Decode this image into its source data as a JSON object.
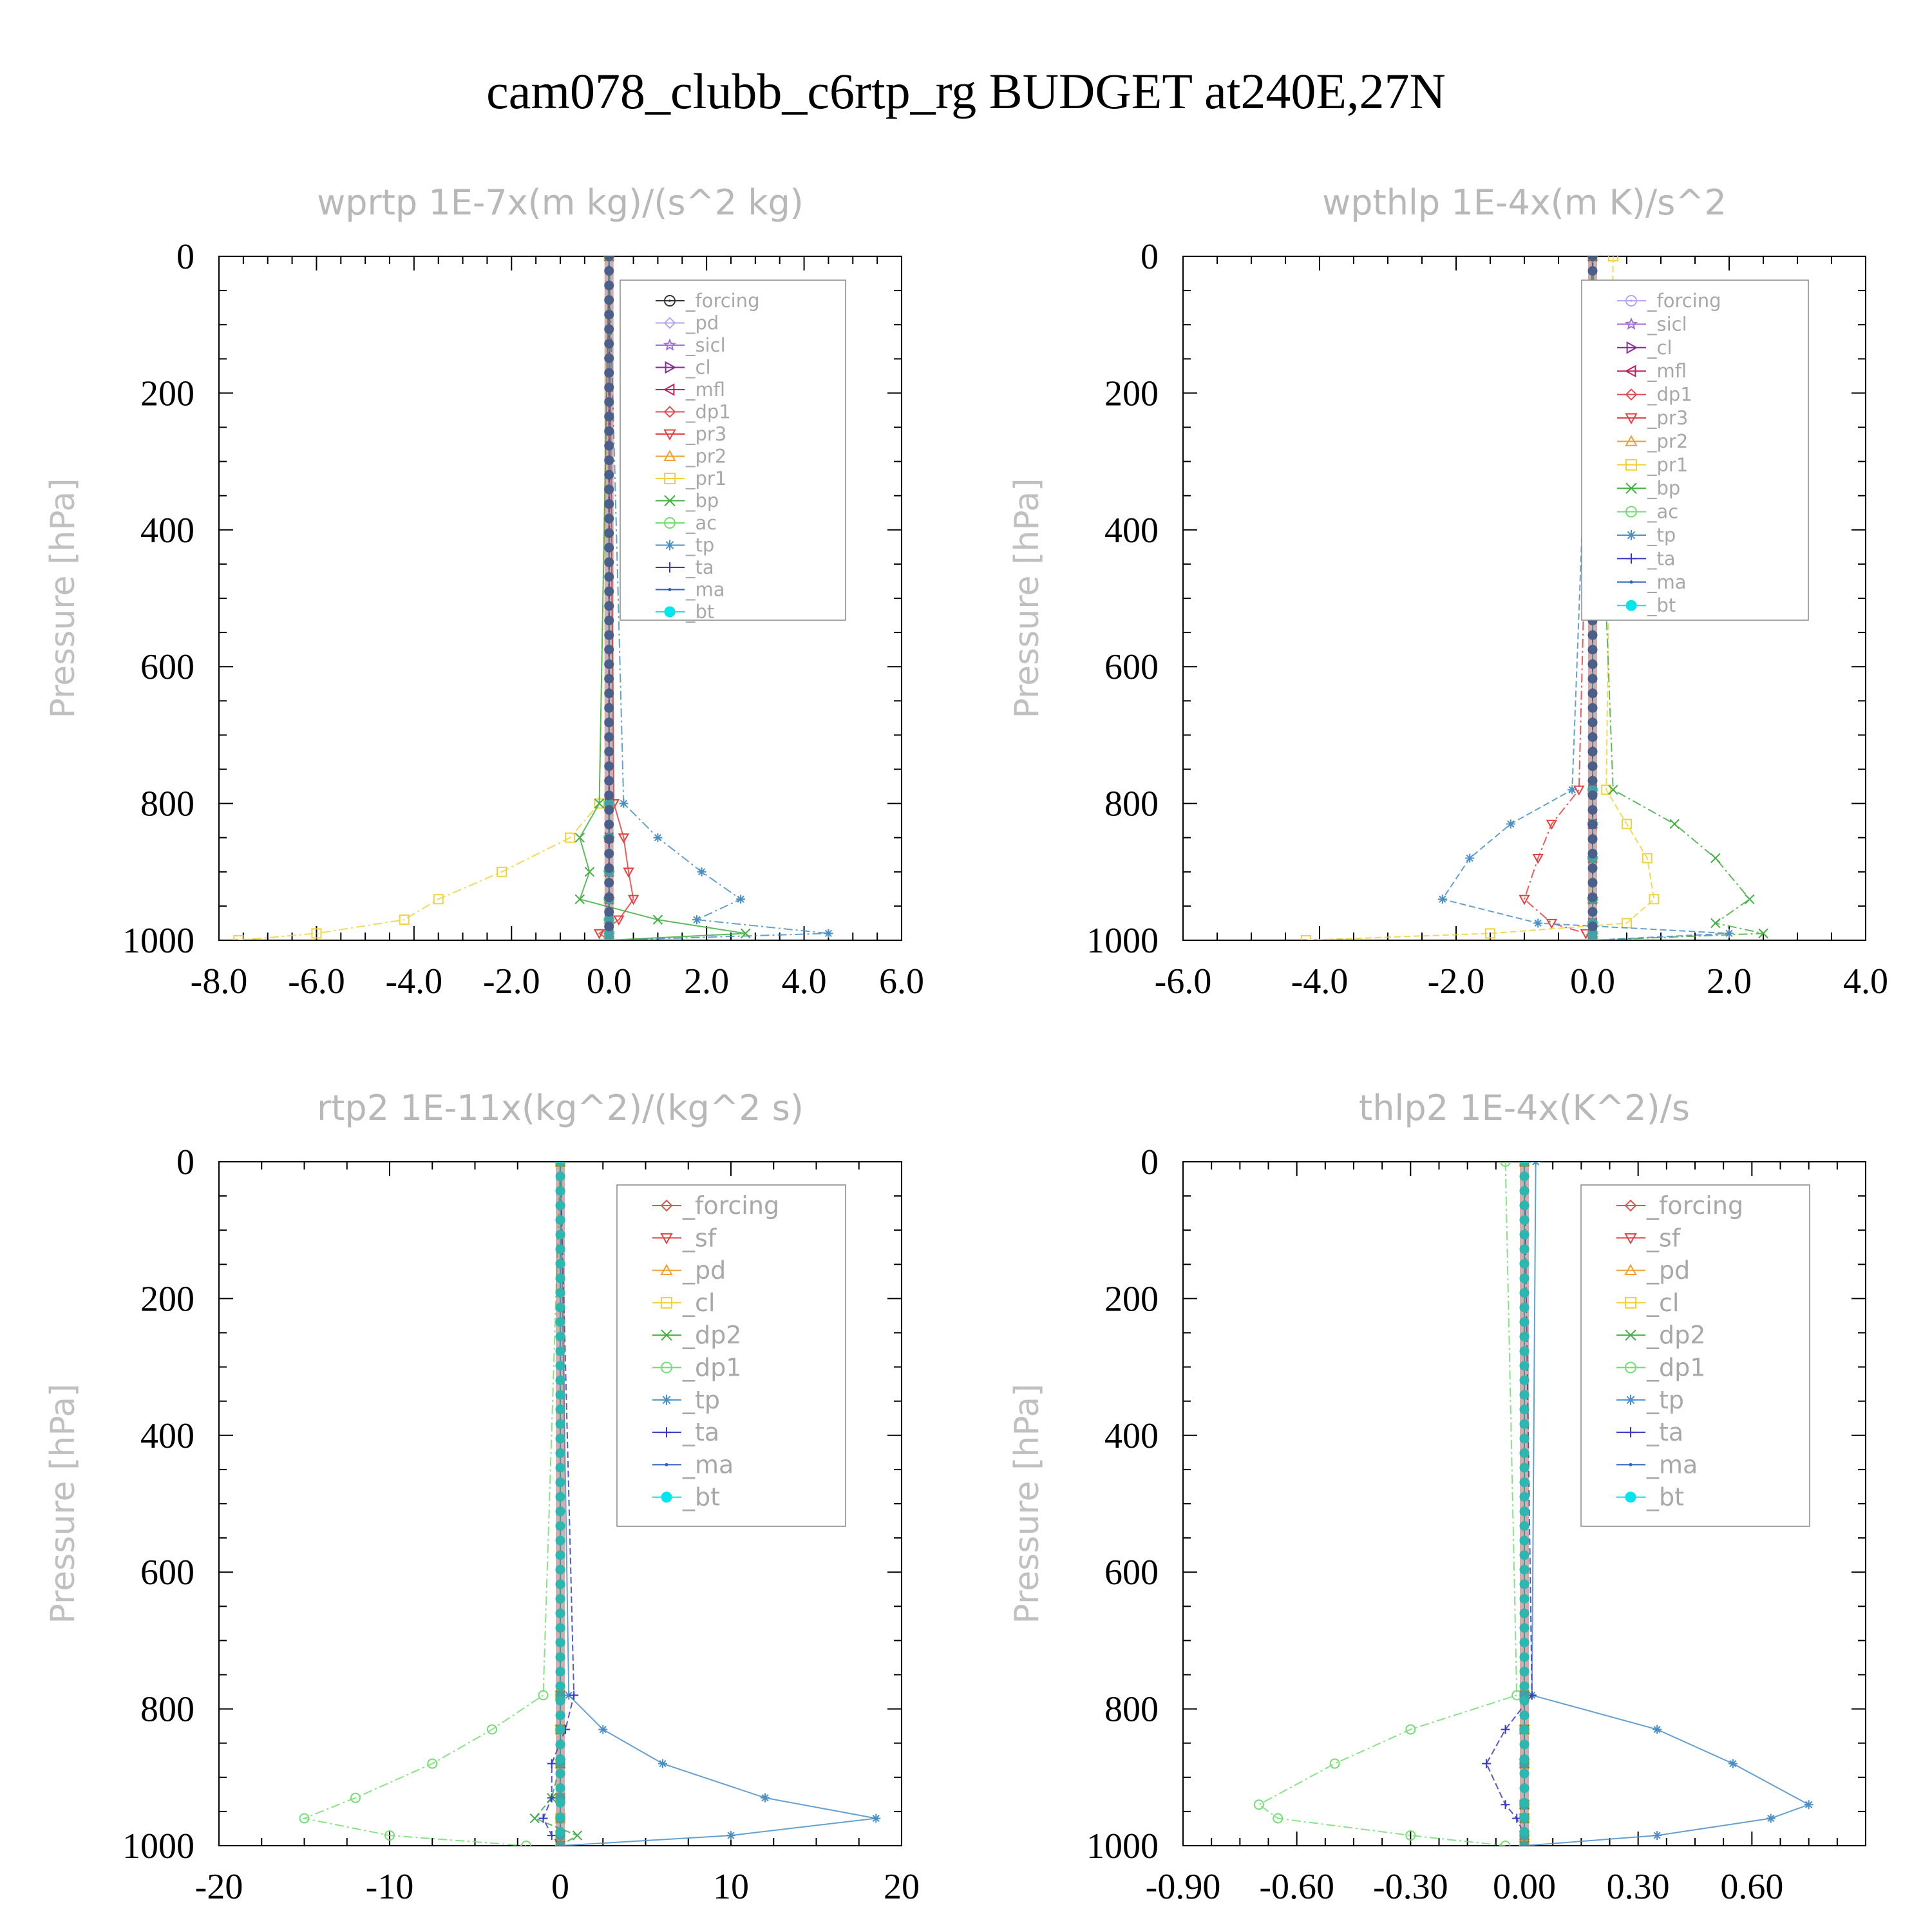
{
  "figure_title": "cam078_clubb_c6rtp_rg  BUDGET at240E,27N",
  "chart_data": [
    {
      "type": "line",
      "title": "wprtp  1E-7x(m kg)/(s^2 kg)",
      "ylabel": "Pressure [hPa]",
      "xlabel": "",
      "xlim": [
        -8.0,
        6.0
      ],
      "xticks": [
        "-8.0",
        "-6.0",
        "-4.0",
        "-2.0",
        "0.0",
        "2.0",
        "4.0",
        "6.0"
      ],
      "ylim": [
        1000,
        0
      ],
      "yticks": [
        "0",
        "200",
        "400",
        "600",
        "800",
        "1000"
      ],
      "legend_position": "top-right",
      "pressure_levels": [
        0,
        800,
        850,
        900,
        940,
        970,
        990,
        1000
      ],
      "series": [
        {
          "name": "_forcing",
          "color": "#333333",
          "marker": "circle-dot",
          "values": [
            0,
            0,
            0,
            0,
            0,
            0,
            0,
            0
          ]
        },
        {
          "name": "_pd",
          "color": "#b9a6f0",
          "marker": "diamond",
          "values": [
            0,
            0,
            0,
            0,
            0,
            0,
            0,
            0
          ]
        },
        {
          "name": "_sicl",
          "color": "#a070d8",
          "marker": "star",
          "values": [
            0,
            0,
            0,
            0,
            0,
            0,
            0,
            0
          ]
        },
        {
          "name": "_cl",
          "color": "#8a2a9a",
          "marker": "tri-right",
          "values": [
            0,
            0,
            0,
            0,
            0,
            0,
            0,
            0
          ]
        },
        {
          "name": "_mfl",
          "color": "#c0205a",
          "marker": "tri-left",
          "values": [
            0,
            0,
            0,
            0,
            0,
            0,
            0,
            0
          ]
        },
        {
          "name": "_dp1",
          "color": "#e05050",
          "marker": "diamond",
          "values": [
            0,
            0,
            0,
            0,
            0,
            0,
            0,
            0
          ]
        },
        {
          "name": "_pr3",
          "color": "#e84040",
          "marker": "tri-down",
          "values": [
            0,
            0.1,
            0.3,
            0.4,
            0.5,
            0.2,
            -0.2,
            0
          ]
        },
        {
          "name": "_pr2",
          "color": "#f0a030",
          "marker": "tri-up",
          "values": [
            0,
            0,
            0,
            0,
            0,
            0,
            0,
            0
          ]
        },
        {
          "name": "_pr1",
          "color": "#f2d23a",
          "marker": "square",
          "values": [
            0,
            -0.2,
            -0.8,
            -2.2,
            -3.5,
            -4.2,
            -6.0,
            -7.6
          ]
        },
        {
          "name": "_bp",
          "color": "#40b040",
          "marker": "x",
          "values": [
            0,
            -0.2,
            -0.6,
            -0.4,
            -0.6,
            1.0,
            2.8,
            0
          ]
        },
        {
          "name": "_ac",
          "color": "#70e070",
          "marker": "circle",
          "values": [
            0,
            0,
            0,
            0,
            0,
            0,
            0,
            0
          ]
        },
        {
          "name": "_tp",
          "color": "#4a90c8",
          "marker": "asterisk",
          "values": [
            0,
            0.3,
            1.0,
            1.9,
            2.7,
            1.8,
            4.5,
            0
          ]
        },
        {
          "name": "_ta",
          "color": "#3838c8",
          "marker": "plus",
          "values": [
            0,
            0,
            0,
            0,
            0,
            0,
            0,
            0
          ]
        },
        {
          "name": "_ma",
          "color": "#3060c0",
          "marker": "dot",
          "values": [
            0,
            0,
            0,
            0,
            0,
            0,
            0,
            0
          ]
        },
        {
          "name": "_bt",
          "color": "#00e5ee",
          "marker": "filled-circle",
          "values": [
            0,
            0,
            0,
            0,
            0,
            0,
            0,
            0
          ]
        }
      ]
    },
    {
      "type": "line",
      "title": "wpthlp  1E-4x(m K)/s^2",
      "ylabel": "Pressure [hPa]",
      "xlabel": "",
      "xlim": [
        -6.0,
        4.0
      ],
      "xticks": [
        "-6.0",
        "-4.0",
        "-2.0",
        "0.0",
        "2.0",
        "4.0"
      ],
      "ylim": [
        1000,
        0
      ],
      "yticks": [
        "0",
        "200",
        "400",
        "600",
        "800",
        "1000"
      ],
      "legend_position": "top-right",
      "pressure_levels": [
        0,
        780,
        830,
        880,
        940,
        975,
        990,
        1000
      ],
      "series": [
        {
          "name": "_forcing",
          "color": "#b9a6f0",
          "marker": "circle-dot",
          "values": [
            0,
            0,
            0,
            0,
            0,
            0,
            0,
            0
          ]
        },
        {
          "name": "_sicl",
          "color": "#a070d8",
          "marker": "star",
          "values": [
            0,
            0,
            0,
            0,
            0,
            0,
            0,
            0
          ]
        },
        {
          "name": "_cl",
          "color": "#8a2a9a",
          "marker": "tri-right",
          "values": [
            0,
            0,
            0,
            0,
            0,
            0,
            0,
            0
          ]
        },
        {
          "name": "_mfl",
          "color": "#c0205a",
          "marker": "tri-left",
          "values": [
            0,
            0,
            0,
            0,
            0,
            0,
            0,
            0
          ]
        },
        {
          "name": "_dp1",
          "color": "#e05050",
          "marker": "diamond",
          "values": [
            0,
            0,
            0,
            0,
            0,
            0,
            0,
            0
          ]
        },
        {
          "name": "_pr3",
          "color": "#e84040",
          "marker": "tri-down",
          "values": [
            0,
            -0.2,
            -0.6,
            -0.8,
            -1.0,
            -0.6,
            -0.1,
            0
          ]
        },
        {
          "name": "_pr2",
          "color": "#f0a030",
          "marker": "tri-up",
          "values": [
            0,
            0,
            0,
            0,
            0,
            0,
            0,
            0
          ]
        },
        {
          "name": "_pr1",
          "color": "#f2d23a",
          "marker": "square",
          "values": [
            0.3,
            0.2,
            0.5,
            0.8,
            0.9,
            0.5,
            -1.5,
            -4.2
          ]
        },
        {
          "name": "_bp",
          "color": "#40b040",
          "marker": "x",
          "values": [
            0,
            0.3,
            1.2,
            1.8,
            2.3,
            1.8,
            2.5,
            0
          ]
        },
        {
          "name": "_ac",
          "color": "#70e070",
          "marker": "circle",
          "values": [
            0,
            0,
            0,
            0,
            0,
            0,
            0,
            0
          ]
        },
        {
          "name": "_tp",
          "color": "#4a90c8",
          "marker": "asterisk",
          "values": [
            0,
            -0.3,
            -1.2,
            -1.8,
            -2.2,
            -0.8,
            2.0,
            0
          ]
        },
        {
          "name": "_ta",
          "color": "#3838c8",
          "marker": "plus",
          "values": [
            0,
            0,
            0,
            0,
            0,
            0,
            0,
            0
          ]
        },
        {
          "name": "_ma",
          "color": "#3060c0",
          "marker": "dot",
          "values": [
            0,
            0,
            0,
            0,
            0,
            0,
            0,
            0
          ]
        },
        {
          "name": "_bt",
          "color": "#00e5ee",
          "marker": "filled-circle",
          "values": [
            0,
            0,
            0,
            0,
            0,
            0,
            0,
            0
          ]
        }
      ]
    },
    {
      "type": "line",
      "title": "rtp2  1E-11x(kg^2)/(kg^2 s)",
      "ylabel": "Pressure [hPa]",
      "xlabel": "",
      "xlim": [
        -20,
        20
      ],
      "xticks": [
        "-20",
        "-10",
        "0",
        "10",
        "20"
      ],
      "ylim": [
        1000,
        0
      ],
      "yticks": [
        "0",
        "200",
        "400",
        "600",
        "800",
        "1000"
      ],
      "legend_position": "top-right",
      "pressure_levels": [
        0,
        780,
        830,
        880,
        930,
        960,
        985,
        1000
      ],
      "series": [
        {
          "name": "_forcing",
          "color": "#e05050",
          "marker": "diamond",
          "values": [
            0,
            0,
            0,
            0,
            0,
            0,
            0,
            0
          ]
        },
        {
          "name": "_sf",
          "color": "#e84040",
          "marker": "tri-down",
          "values": [
            0,
            0,
            0,
            0,
            0,
            0,
            0,
            0
          ]
        },
        {
          "name": "_pd",
          "color": "#f0a030",
          "marker": "tri-up",
          "values": [
            0,
            0,
            0,
            0,
            0,
            0,
            0,
            0
          ]
        },
        {
          "name": "_cl",
          "color": "#f2d23a",
          "marker": "square",
          "values": [
            0,
            0,
            0,
            0,
            0,
            0,
            0,
            0
          ]
        },
        {
          "name": "_dp2",
          "color": "#40b040",
          "marker": "x",
          "values": [
            0,
            0,
            0,
            0,
            -0.5,
            -1.5,
            1.0,
            0
          ]
        },
        {
          "name": "_dp1",
          "color": "#70e070",
          "marker": "circle",
          "values": [
            0,
            -1.0,
            -4.0,
            -7.5,
            -12.0,
            -15.0,
            -10.0,
            -2.0
          ]
        },
        {
          "name": "_tp",
          "color": "#4a90c8",
          "marker": "asterisk",
          "values": [
            0,
            0.5,
            2.5,
            6.0,
            12.0,
            18.5,
            10.0,
            0
          ]
        },
        {
          "name": "_ta",
          "color": "#3838c8",
          "marker": "plus",
          "values": [
            0,
            0.8,
            0.3,
            -0.5,
            -0.5,
            -1.0,
            -0.5,
            0
          ]
        },
        {
          "name": "_ma",
          "color": "#3060c0",
          "marker": "dot",
          "values": [
            0,
            0,
            0,
            0,
            0,
            0,
            0,
            0
          ]
        },
        {
          "name": "_bt",
          "color": "#00e5ee",
          "marker": "filled-circle",
          "values": [
            0,
            0,
            0,
            0,
            0,
            0,
            0,
            0
          ]
        }
      ]
    },
    {
      "type": "line",
      "title": "thlp2  1E-4x(K^2)/s",
      "ylabel": "Pressure [hPa]",
      "xlabel": "",
      "xlim": [
        -0.9,
        0.9
      ],
      "xticks": [
        "-0.90",
        "-0.60",
        "-0.30",
        "0.00",
        "0.30",
        "0.60"
      ],
      "ylim": [
        1000,
        0
      ],
      "yticks": [
        "0",
        "200",
        "400",
        "600",
        "800",
        "1000"
      ],
      "legend_position": "top-right",
      "pressure_levels": [
        0,
        780,
        830,
        880,
        940,
        960,
        985,
        1000
      ],
      "series": [
        {
          "name": "_forcing",
          "color": "#e05050",
          "marker": "diamond",
          "values": [
            0,
            0,
            0,
            0,
            0,
            0,
            0,
            0
          ]
        },
        {
          "name": "_sf",
          "color": "#e84040",
          "marker": "tri-down",
          "values": [
            0,
            0,
            0,
            0,
            0,
            0,
            0,
            0
          ]
        },
        {
          "name": "_pd",
          "color": "#f0a030",
          "marker": "tri-up",
          "values": [
            0,
            0,
            0,
            0,
            0,
            0,
            0,
            0
          ]
        },
        {
          "name": "_cl",
          "color": "#f2d23a",
          "marker": "square",
          "values": [
            0,
            0,
            0,
            0,
            0,
            0,
            0,
            0
          ]
        },
        {
          "name": "_dp2",
          "color": "#40b040",
          "marker": "x",
          "values": [
            0,
            0,
            0,
            0,
            0,
            0,
            0,
            0
          ]
        },
        {
          "name": "_dp1",
          "color": "#70e070",
          "marker": "circle",
          "values": [
            -0.05,
            -0.02,
            -0.3,
            -0.5,
            -0.7,
            -0.65,
            -0.3,
            -0.05
          ]
        },
        {
          "name": "_tp",
          "color": "#4a90c8",
          "marker": "asterisk",
          "values": [
            0.03,
            0.02,
            0.35,
            0.55,
            0.75,
            0.65,
            0.35,
            0
          ]
        },
        {
          "name": "_ta",
          "color": "#3838c8",
          "marker": "plus",
          "values": [
            0,
            0.02,
            -0.05,
            -0.1,
            -0.05,
            -0.02,
            0,
            0
          ]
        },
        {
          "name": "_ma",
          "color": "#3060c0",
          "marker": "dot",
          "values": [
            0,
            0,
            0,
            0,
            0,
            0,
            0,
            0
          ]
        },
        {
          "name": "_bt",
          "color": "#00e5ee",
          "marker": "filled-circle",
          "values": [
            0,
            0,
            0,
            0,
            0,
            0,
            0,
            0
          ]
        }
      ]
    }
  ]
}
